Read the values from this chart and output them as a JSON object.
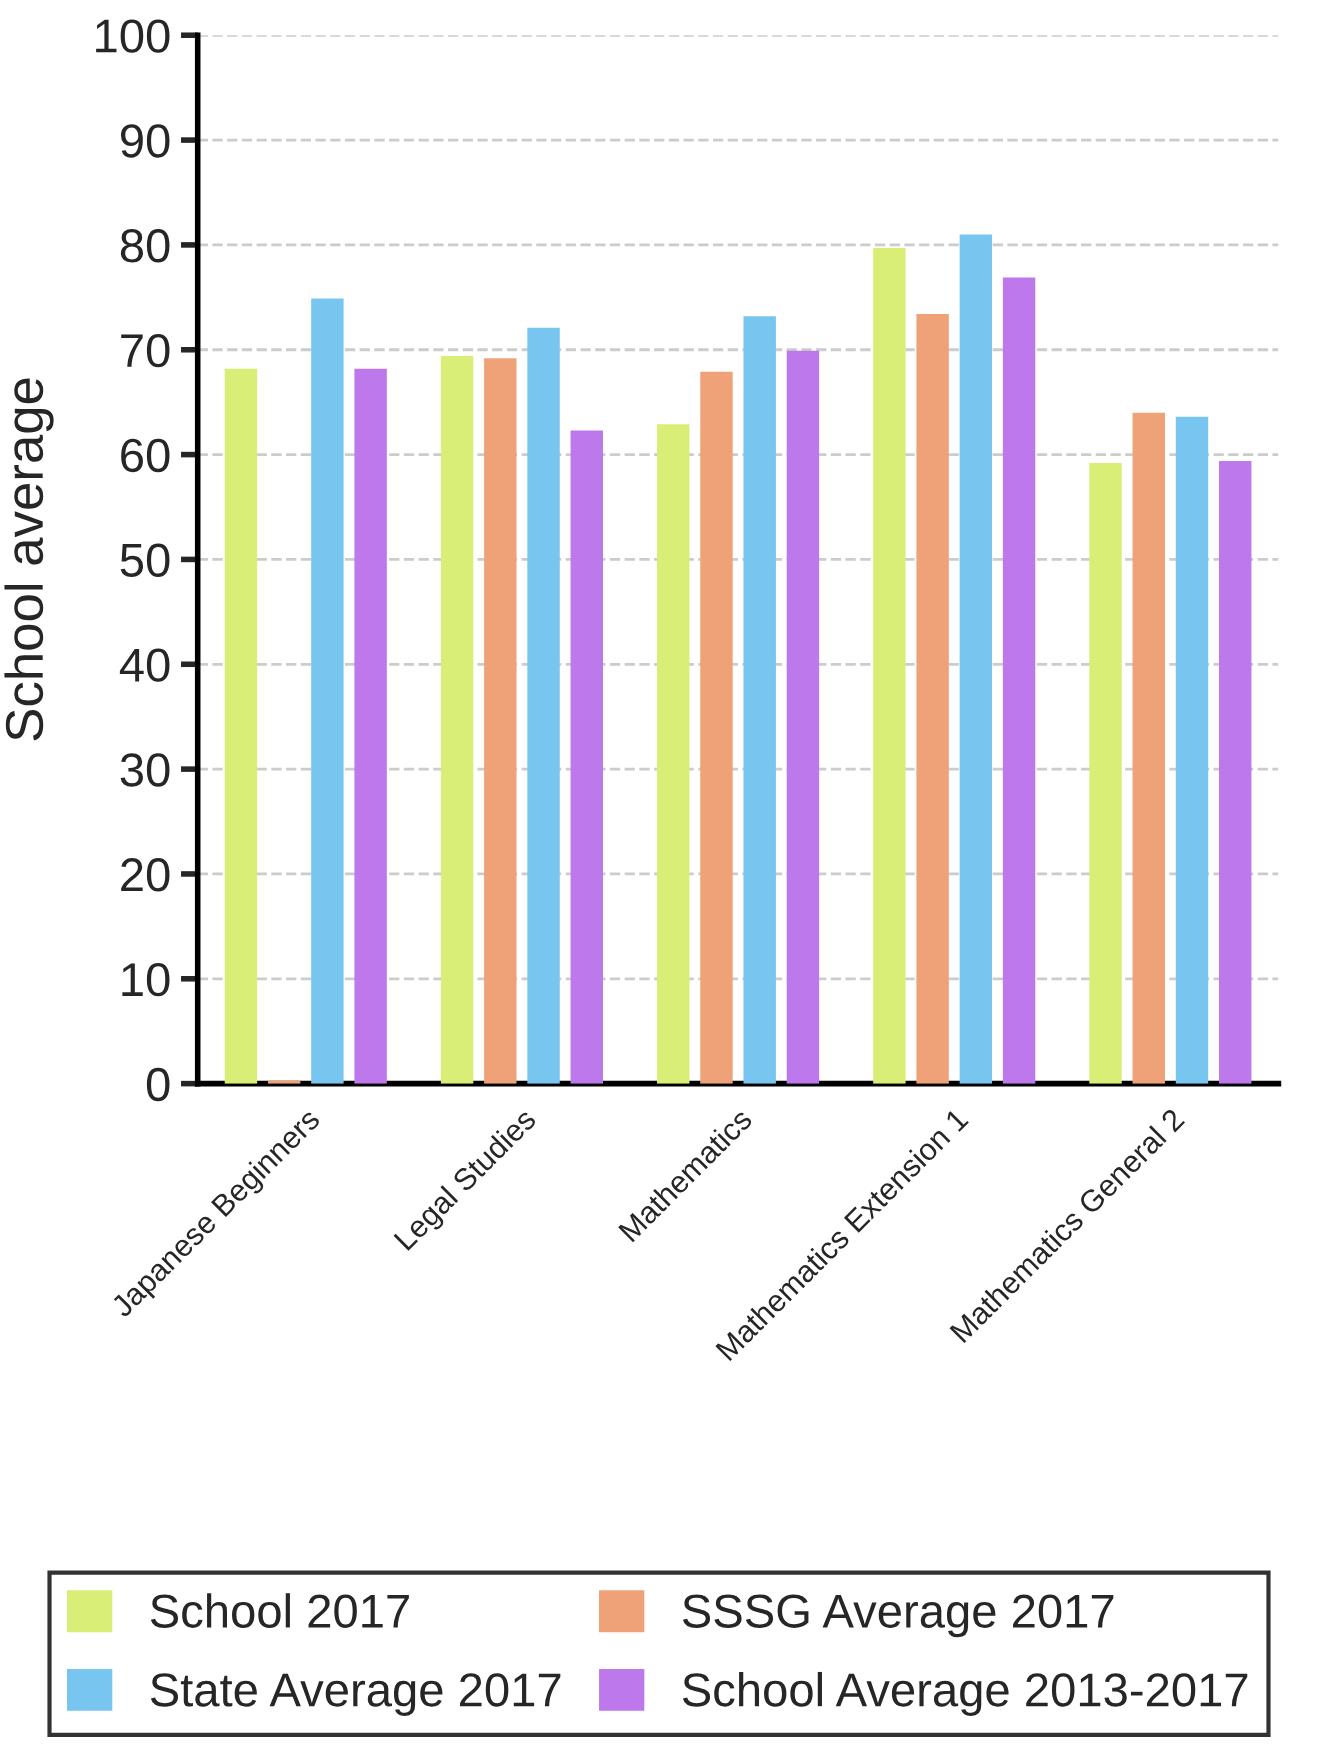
{
  "chart_data": {
    "type": "bar",
    "ylabel": "School average",
    "categories": [
      "Japanese Beginners",
      "Legal Studies",
      "Mathematics",
      "Mathematics Extension 1",
      "Mathematics General 2"
    ],
    "series": [
      {
        "name": "School 2017",
        "color": "#d9ee76",
        "values": [
          68.2,
          69.4,
          62.9,
          79.7,
          59.2
        ]
      },
      {
        "name": "SSSG Average 2017",
        "color": "#efa278",
        "values": [
          0.3,
          69.2,
          67.9,
          73.4,
          64.0
        ]
      },
      {
        "name": "State Average 2017",
        "color": "#78c5ef",
        "values": [
          74.9,
          72.1,
          73.2,
          81.0,
          63.6
        ]
      },
      {
        "name": "School Average 2013-2017",
        "color": "#bd78ec",
        "values": [
          68.2,
          62.3,
          69.9,
          76.9,
          59.4
        ]
      }
    ],
    "ylim": [
      0,
      100
    ],
    "yticks": [
      0,
      10,
      20,
      30,
      40,
      50,
      60,
      70,
      80,
      90,
      100
    ],
    "grid": "y",
    "legend": "bottom"
  }
}
